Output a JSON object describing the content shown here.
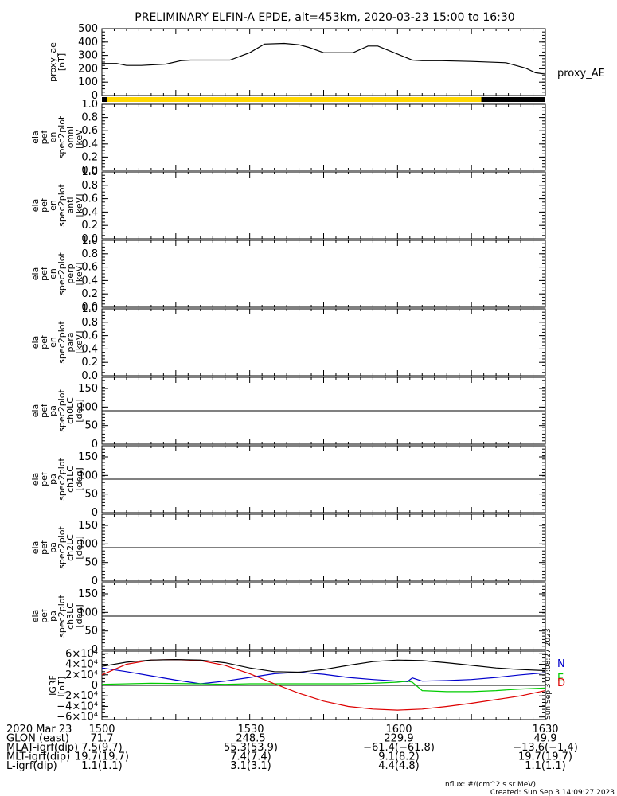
{
  "title": "PRELIMINARY ELFIN-A EPDE, alt=453km, 2020-03-23 15:00 to 16:30",
  "colors": {
    "north": "#0000cc",
    "east": "#00cc00",
    "down": "#dd0000",
    "total": "#000000",
    "black": "#000000",
    "yellow": "#ffd700"
  },
  "chart_data": [
    {
      "type": "line",
      "ylabel": "proxy_ae\n[nT]",
      "legend": "proxy_AE",
      "ylim": [
        0,
        500
      ],
      "yticks": [
        "0",
        "100",
        "200",
        "300",
        "400",
        "500"
      ],
      "xlim": [
        0,
        90
      ],
      "series": [
        {
          "name": "proxy_AE",
          "x": [
            0,
            3,
            5,
            8,
            13,
            16,
            18,
            21,
            26,
            30,
            33,
            37,
            40,
            42,
            45,
            47,
            51,
            54,
            56,
            58,
            60,
            63,
            65,
            69,
            75,
            82,
            86,
            88,
            90
          ],
          "y": [
            240,
            240,
            225,
            225,
            235,
            260,
            265,
            265,
            265,
            320,
            385,
            390,
            380,
            360,
            320,
            320,
            320,
            370,
            370,
            340,
            310,
            265,
            260,
            260,
            255,
            245,
            205,
            170,
            160
          ]
        }
      ]
    },
    {
      "type": "timebar",
      "segments": [
        {
          "start": 0,
          "end": 1,
          "color": "black"
        },
        {
          "start": 1,
          "end": 77,
          "color": "yellow"
        },
        {
          "start": 77,
          "end": 90,
          "color": "black"
        }
      ]
    },
    {
      "type": "heatmap",
      "ylabel": "ela\npef\nen\nspec2plot\nomni\n[keV]",
      "ylim": [
        0,
        1
      ],
      "yticks": [
        "0.0",
        "0.2",
        "0.4",
        "0.6",
        "0.8",
        "1.0"
      ]
    },
    {
      "type": "heatmap",
      "ylabel": "ela\npef\nen\nspec2plot\nanti\n[keV]",
      "ylim": [
        0,
        1
      ],
      "yticks": [
        "0.0",
        "0.2",
        "0.4",
        "0.6",
        "0.8",
        "1.0"
      ]
    },
    {
      "type": "heatmap",
      "ylabel": "ela\npef\nen\nspec2plot\nperp\n[keV]",
      "ylim": [
        0,
        1
      ],
      "yticks": [
        "0.0",
        "0.2",
        "0.4",
        "0.6",
        "0.8",
        "1.0"
      ]
    },
    {
      "type": "heatmap",
      "ylabel": "ela\npef\nen\nspec2plot\npara\n[keV]",
      "ylim": [
        0,
        1
      ],
      "yticks": [
        "0.0",
        "0.2",
        "0.4",
        "0.6",
        "0.8",
        "1.0"
      ]
    },
    {
      "type": "heatmap",
      "ylabel": "ela\npef\npa\nspec2plot\nch0LC\n[deg]",
      "ylim": [
        0,
        180
      ],
      "yticks": [
        "0",
        "50",
        "100",
        "150"
      ],
      "refline": 90
    },
    {
      "type": "heatmap",
      "ylabel": "ela\npef\npa\nspec2plot\nch1LC\n[deg]",
      "ylim": [
        0,
        180
      ],
      "yticks": [
        "0",
        "50",
        "100",
        "150"
      ],
      "refline": 90
    },
    {
      "type": "heatmap",
      "ylabel": "ela\npef\npa\nspec2plot\nch2LC\n[deg]",
      "ylim": [
        0,
        180
      ],
      "yticks": [
        "0",
        "50",
        "100",
        "150"
      ],
      "refline": 90
    },
    {
      "type": "heatmap",
      "ylabel": "ela\npef\npa\nspec2plot\nch3LC\n[deg]",
      "ylim": [
        0,
        180
      ],
      "yticks": [
        "0",
        "50",
        "100",
        "150"
      ],
      "refline": 90
    },
    {
      "type": "line",
      "ylabel": "IGRF\n[nT]",
      "ylim": [
        -65000,
        65000
      ],
      "yticks": [
        "−6×10⁴",
        "−4×10⁴",
        "−2×10⁴",
        "0",
        "2×10⁴",
        "4×10⁴",
        "6×10⁴"
      ],
      "legend": [
        "N",
        "E",
        "D"
      ],
      "xlim": [
        0,
        90
      ],
      "series": [
        {
          "name": "N",
          "x": [
            0,
            5,
            10,
            15,
            20,
            25,
            30,
            35,
            40,
            45,
            50,
            55,
            60,
            62,
            63,
            65,
            70,
            75,
            80,
            85,
            90
          ],
          "y": [
            33000,
            26000,
            18000,
            10000,
            3000,
            8000,
            15000,
            22000,
            25000,
            21000,
            15000,
            11000,
            8000,
            7000,
            14000,
            8000,
            9000,
            11000,
            15000,
            20000,
            24000
          ]
        },
        {
          "name": "E",
          "x": [
            0,
            10,
            20,
            25,
            30,
            35,
            40,
            45,
            50,
            55,
            60,
            62,
            63,
            65,
            70,
            75,
            80,
            85,
            90
          ],
          "y": [
            2000,
            4000,
            3000,
            2000,
            3000,
            3000,
            3000,
            3000,
            3000,
            4000,
            6000,
            8000,
            6000,
            -10000,
            -12000,
            -12000,
            -10000,
            -7000,
            -5000
          ]
        },
        {
          "name": "D",
          "x": [
            0,
            5,
            10,
            15,
            20,
            25,
            30,
            35,
            40,
            45,
            50,
            55,
            60,
            65,
            70,
            75,
            80,
            85,
            90
          ],
          "y": [
            20000,
            40000,
            48000,
            49000,
            47000,
            38000,
            22000,
            3000,
            -15000,
            -30000,
            -40000,
            -45000,
            -47000,
            -45000,
            -40000,
            -34000,
            -27000,
            -20000,
            -10000
          ]
        },
        {
          "name": "total",
          "x": [
            0,
            5,
            10,
            15,
            20,
            25,
            30,
            35,
            40,
            45,
            50,
            55,
            60,
            65,
            70,
            75,
            80,
            85,
            90
          ],
          "y": [
            36000,
            44000,
            48000,
            49000,
            48000,
            43000,
            33000,
            26000,
            25000,
            30000,
            38000,
            45000,
            48000,
            47000,
            43000,
            38000,
            33000,
            30000,
            28000
          ]
        }
      ]
    }
  ],
  "footer": {
    "rows": [
      {
        "label": "2020 Mar 23",
        "values": [
          "1500",
          "1530",
          "1600",
          "1630"
        ]
      },
      {
        "label": "GLON (east)",
        "values": [
          "71.7",
          "248.5",
          "229.9",
          "49.9"
        ]
      },
      {
        "label": "MLAT-igrf(dip)",
        "values": [
          "7.5(9.7)",
          "55.3(53.9)",
          "−61.4(−61.8)",
          "−13.6(−1.4)"
        ]
      },
      {
        "label": "MLT-igrf(dip)",
        "values": [
          "19.7(19.7)",
          "7.4(7.4)",
          "9.1(8.2)",
          "19.7(19.7)"
        ]
      },
      {
        "label": "L-igrf(dip)",
        "values": [
          "1.1(1.1)",
          "3.1(3.1)",
          "4.4(4.8)",
          "1.1(1.1)"
        ]
      }
    ],
    "nflux": "nflux: #/(cm^2 s sr MeV)",
    "created": "Created: Sun Sep  3 14:09:27 2023",
    "sidestamp": "Sun Sep  3 07:08:27 2023"
  }
}
